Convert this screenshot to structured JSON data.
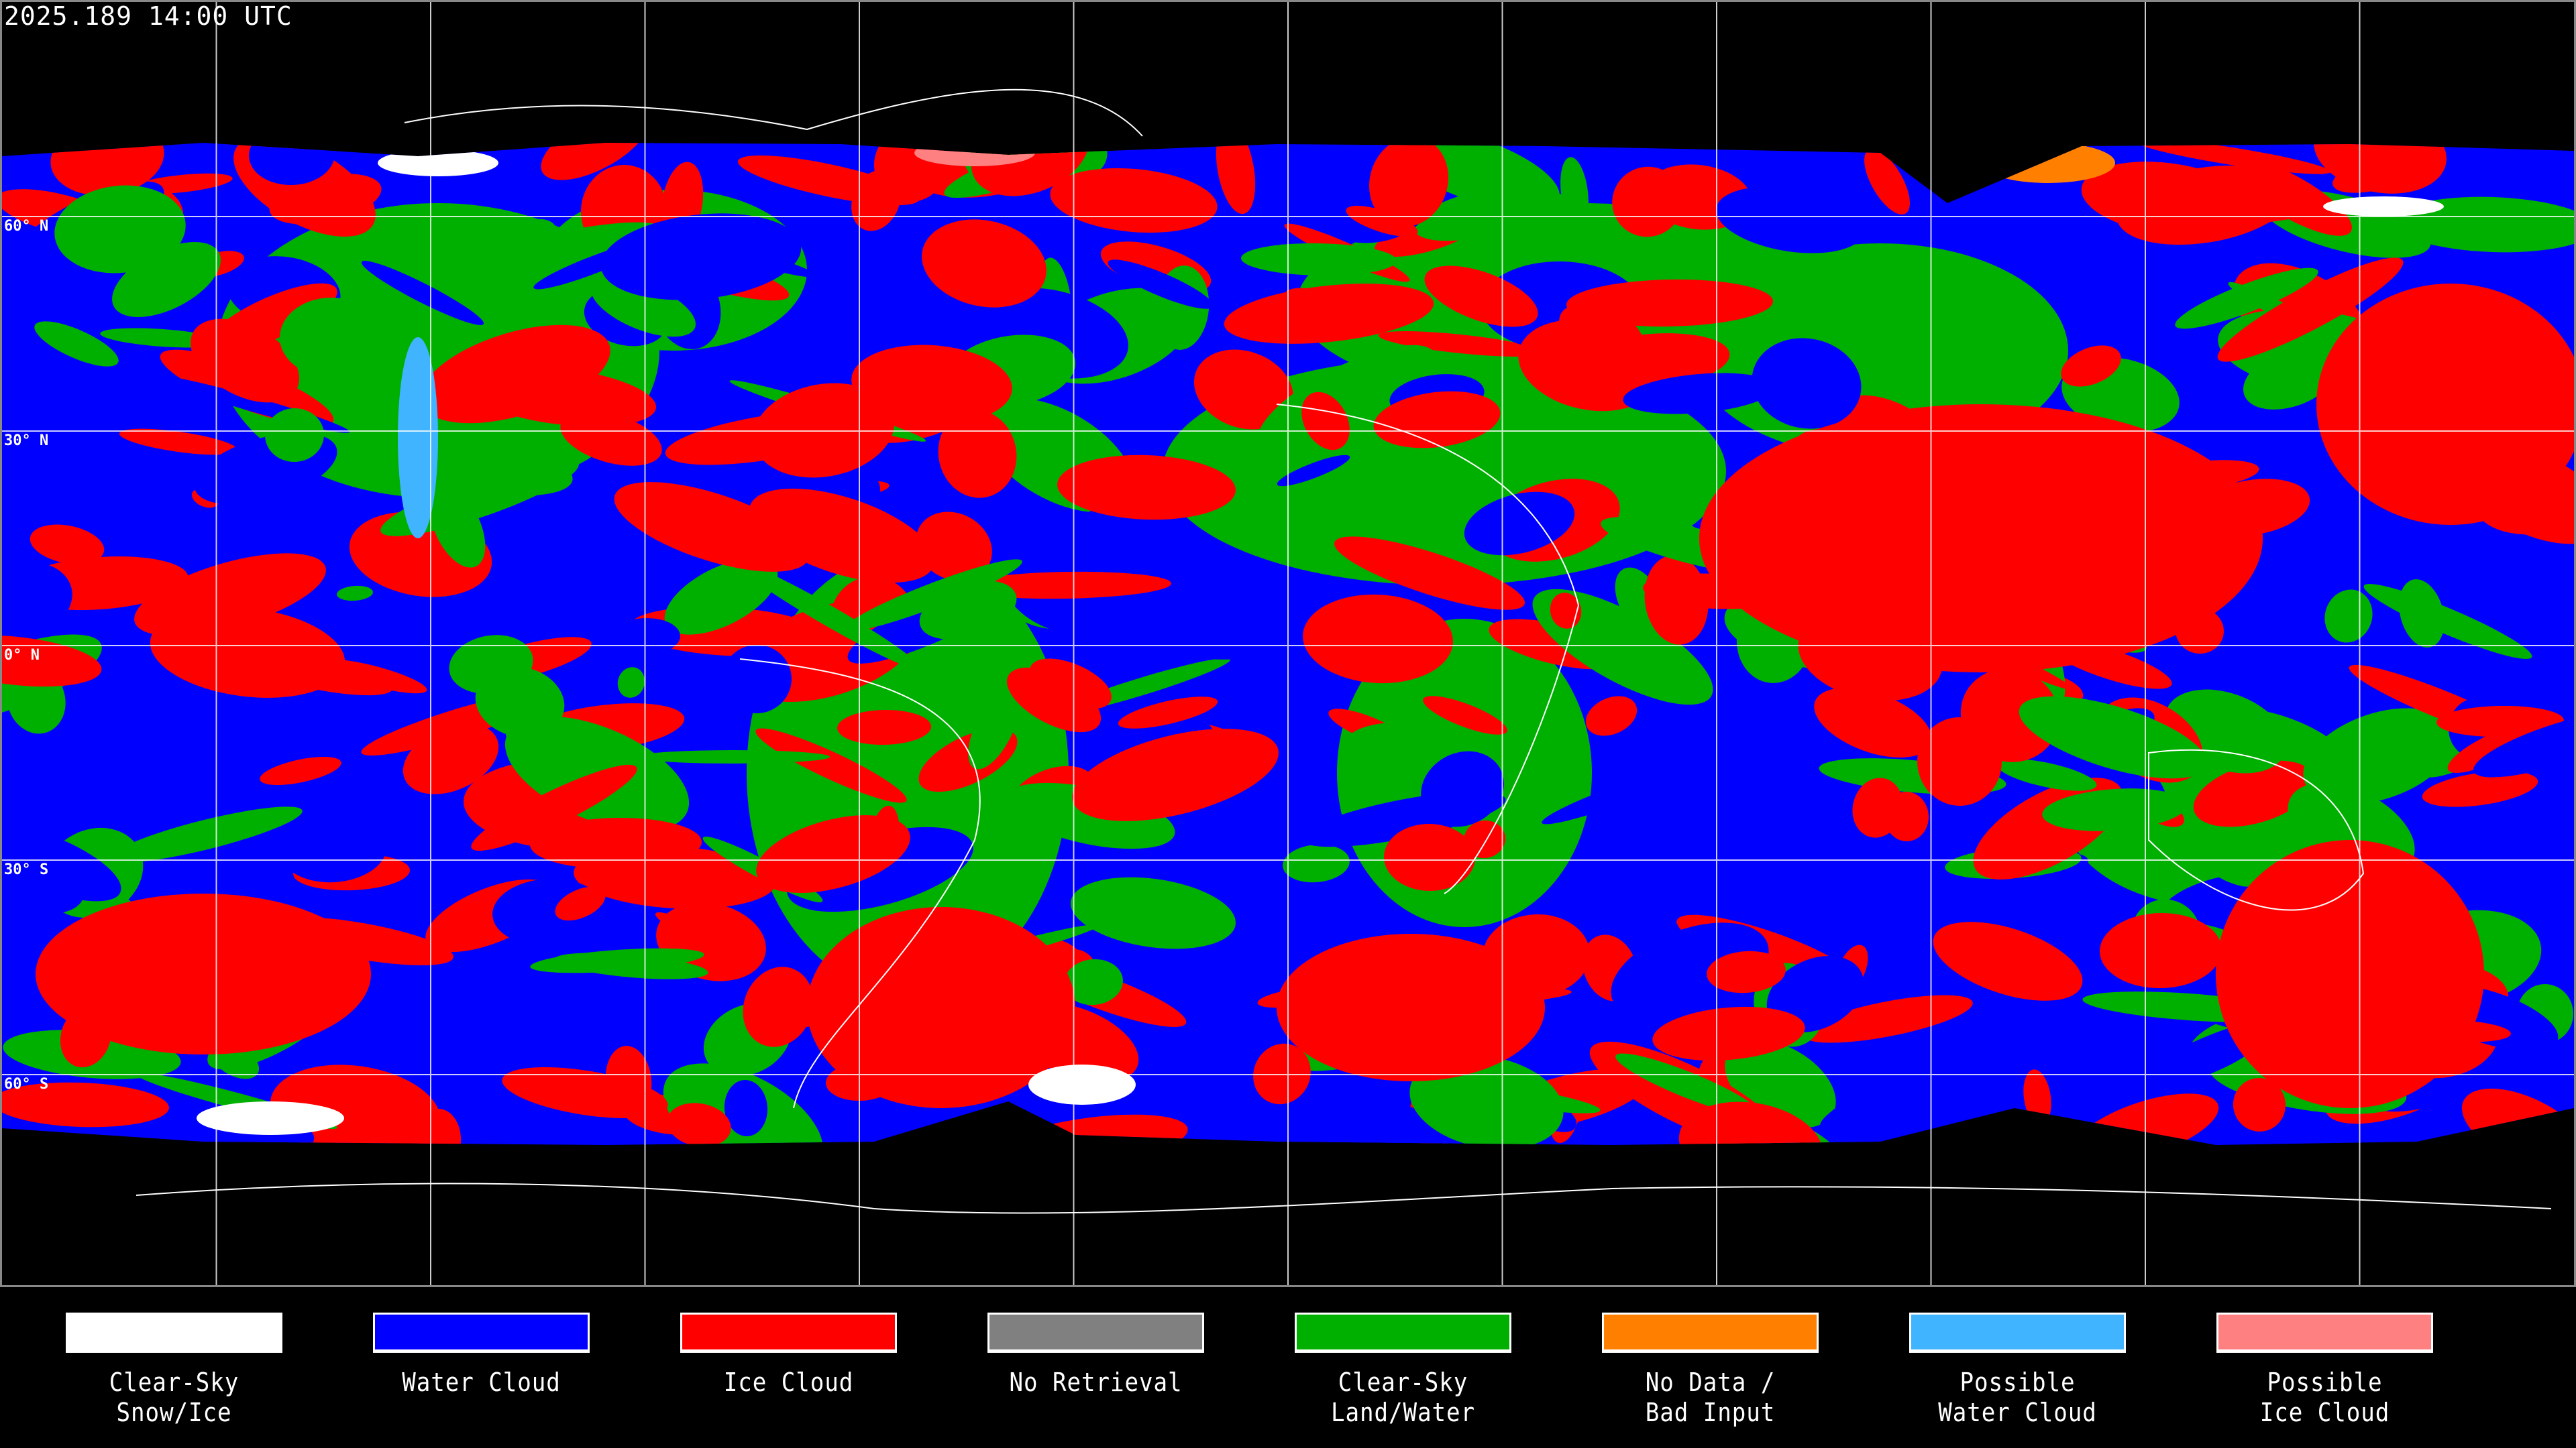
{
  "header": {
    "timestamp": "2025.189 14:00 UTC"
  },
  "map": {
    "projection": "equirectangular",
    "gridlines": true,
    "grid_spacing_degrees": 30,
    "latitude_labels": [
      "60° N",
      "30° N",
      "0° N",
      "30° S",
      "60° S"
    ],
    "coastlines_color": "#ffffff"
  },
  "legend": {
    "items": [
      {
        "line1": "Clear-Sky",
        "line2": "Snow/Ice",
        "color": "#ffffff"
      },
      {
        "line1": "Water Cloud",
        "line2": "",
        "color": "#0000ff"
      },
      {
        "line1": "Ice Cloud",
        "line2": "",
        "color": "#ff0000"
      },
      {
        "line1": "No Retrieval",
        "line2": "",
        "color": "#808080"
      },
      {
        "line1": "Clear-Sky",
        "line2": "Land/Water",
        "color": "#00b000"
      },
      {
        "line1": "No Data /",
        "line2": "Bad Input",
        "color": "#ff8000"
      },
      {
        "line1": "Possible",
        "line2": "Water Cloud",
        "color": "#40b4ff"
      },
      {
        "line1": "Possible",
        "line2": "Ice Cloud",
        "color": "#ff8080"
      }
    ]
  }
}
